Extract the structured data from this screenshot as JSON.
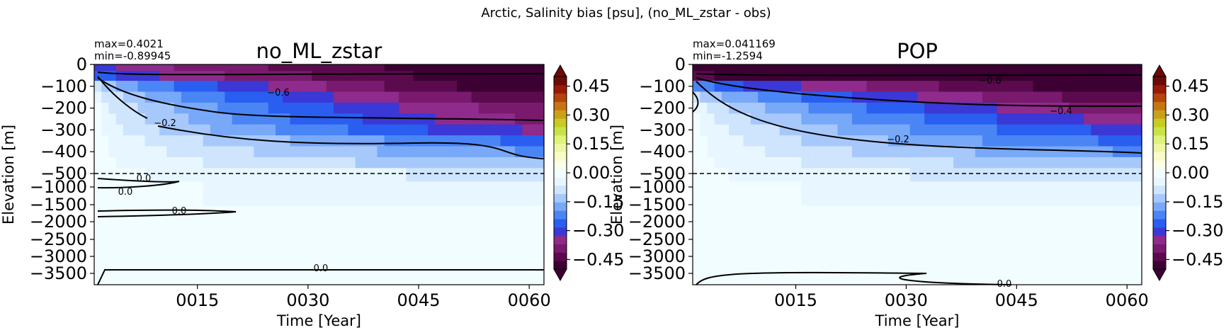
{
  "suptitle": "Arctic, Salinity bias [psu], (no_ML_zstar - obs)",
  "chart_data": [
    {
      "type": "heatmap",
      "title": "no_ML_zstar",
      "stats": {
        "max": "max=0.4021",
        "min": "min=-0.89945"
      },
      "xlabel": "Time [Year]",
      "ylabel": "Elevation [m]",
      "x_range": [
        1,
        62
      ],
      "x_ticks": [
        {
          "value": 15,
          "label": "0015"
        },
        {
          "value": 30,
          "label": "0030"
        },
        {
          "value": 45,
          "label": "0045"
        },
        {
          "value": 60,
          "label": "0060"
        }
      ],
      "y_upper_ticks": [
        "0",
        "−100",
        "−200",
        "−300",
        "−400",
        "−500"
      ],
      "y_lower_ticks": [
        "−1000",
        "−1500",
        "−2000",
        "−2500",
        "−3000",
        "−3500"
      ],
      "y_split_depth_m": -500,
      "contour_labels": [
        "−0.6",
        "−0.2",
        "0.0",
        "0.0",
        "0.0",
        "0.0"
      ],
      "bias_by_depth": [
        {
          "depth_m": -10,
          "year1": -0.3,
          "year60": -0.5
        },
        {
          "depth_m": -50,
          "year1": -0.25,
          "year60": -0.5
        },
        {
          "depth_m": -100,
          "year1": -0.1,
          "year60": -0.5
        },
        {
          "depth_m": -150,
          "year1": -0.04,
          "year60": -0.45
        },
        {
          "depth_m": -200,
          "year1": -0.02,
          "year60": -0.4
        },
        {
          "depth_m": -250,
          "year1": -0.01,
          "year60": -0.38
        },
        {
          "depth_m": -300,
          "year1": -0.01,
          "year60": -0.33
        },
        {
          "depth_m": -350,
          "year1": 0.0,
          "year60": -0.25
        },
        {
          "depth_m": -400,
          "year1": 0.0,
          "year60": -0.2
        },
        {
          "depth_m": -450,
          "year1": 0.0,
          "year60": -0.15
        },
        {
          "depth_m": -500,
          "year1": 0.0,
          "year60": -0.08
        },
        {
          "depth_m": -1000,
          "year1": 0.0,
          "year60": -0.05
        },
        {
          "depth_m": -2000,
          "year1": 0.0,
          "year60": -0.02
        },
        {
          "depth_m": -3500,
          "year1": 0.0,
          "year60": -0.01
        }
      ]
    },
    {
      "type": "heatmap",
      "title": "POP",
      "stats": {
        "max": "max=0.041169",
        "min": "min=-1.2594"
      },
      "xlabel": "Time [Year]",
      "ylabel": "Elevation [m]",
      "x_range": [
        1,
        62
      ],
      "x_ticks": [
        {
          "value": 15,
          "label": "0015"
        },
        {
          "value": 30,
          "label": "0030"
        },
        {
          "value": 45,
          "label": "0045"
        },
        {
          "value": 60,
          "label": "0060"
        }
      ],
      "y_upper_ticks": [
        "0",
        "−100",
        "−200",
        "−300",
        "−400",
        "−500"
      ],
      "y_lower_ticks": [
        "−1000",
        "−1500",
        "−2000",
        "−2500",
        "−3000",
        "−3500"
      ],
      "y_split_depth_m": -500,
      "contour_labels": [
        "−0.8",
        "−0.4",
        "−0.2",
        "0.0"
      ],
      "bias_by_depth": [
        {
          "depth_m": -10,
          "year1": -0.5,
          "year60": -0.5
        },
        {
          "depth_m": -50,
          "year1": -0.45,
          "year60": -0.5
        },
        {
          "depth_m": -100,
          "year1": -0.2,
          "year60": -0.5
        },
        {
          "depth_m": -150,
          "year1": -0.08,
          "year60": -0.45
        },
        {
          "depth_m": -200,
          "year1": -0.03,
          "year60": -0.4
        },
        {
          "depth_m": -250,
          "year1": -0.01,
          "year60": -0.35
        },
        {
          "depth_m": -300,
          "year1": 0.0,
          "year60": -0.3
        },
        {
          "depth_m": -350,
          "year1": 0.0,
          "year60": -0.25
        },
        {
          "depth_m": -400,
          "year1": 0.0,
          "year60": -0.2
        },
        {
          "depth_m": -450,
          "year1": 0.0,
          "year60": -0.15
        },
        {
          "depth_m": -500,
          "year1": 0.0,
          "year60": -0.1
        },
        {
          "depth_m": -1000,
          "year1": 0.0,
          "year60": -0.05
        },
        {
          "depth_m": -2000,
          "year1": 0.0,
          "year60": -0.02
        },
        {
          "depth_m": -3500,
          "year1": 0.02,
          "year60": -0.01
        }
      ]
    }
  ],
  "colorbar": {
    "ticks": [
      "0.45",
      "0.30",
      "0.15",
      "0.00",
      "−0.15",
      "−0.30",
      "−0.45"
    ],
    "range": [
      -0.5,
      0.5
    ],
    "extend": "both",
    "colormap": [
      "#3d0033",
      "#5c0a4e",
      "#7a1a6e",
      "#8e2b8c",
      "#3a38d6",
      "#2a5ef0",
      "#4a85f5",
      "#78a8f8",
      "#a7c8fb",
      "#cfe4fd",
      "#e8f6ff",
      "#f2fdff",
      "#fbfee8",
      "#f7fcc8",
      "#eff7a3",
      "#dff27a",
      "#c9e249",
      "#c6cc22",
      "#cba019",
      "#c77512",
      "#b5450c",
      "#9a1a08",
      "#6d0a06"
    ]
  }
}
